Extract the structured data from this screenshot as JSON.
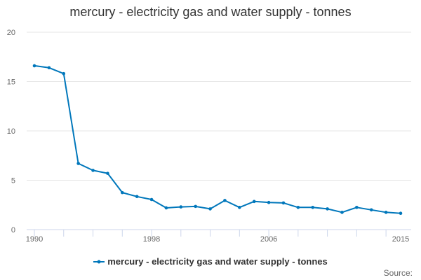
{
  "chart_data": {
    "type": "line",
    "title": "mercury - electricity gas and water supply - tonnes",
    "xlabel": "",
    "ylabel": "",
    "x": [
      1990,
      1991,
      1992,
      1993,
      1994,
      1995,
      1996,
      1997,
      1998,
      1999,
      2000,
      2001,
      2002,
      2003,
      2004,
      2005,
      2006,
      2007,
      2008,
      2009,
      2010,
      2011,
      2012,
      2013,
      2014,
      2015
    ],
    "series": [
      {
        "name": "mercury - electricity gas and water supply - tonnes",
        "color": "#0077bb",
        "values": [
          16.6,
          16.4,
          15.8,
          6.7,
          6.0,
          5.7,
          3.75,
          3.35,
          3.05,
          2.2,
          2.3,
          2.35,
          2.1,
          2.95,
          2.25,
          2.85,
          2.75,
          2.7,
          2.25,
          2.25,
          2.1,
          1.75,
          2.25,
          2.0,
          1.75,
          1.65
        ]
      }
    ],
    "xlim": [
      1990,
      2015
    ],
    "ylim": [
      0,
      20
    ],
    "y_ticks": [
      0,
      5,
      10,
      15,
      20
    ],
    "x_tick_labels": [
      "1990",
      "1998",
      "2006",
      "2015"
    ],
    "grid": "horizontal",
    "legend_position": "bottom-center"
  },
  "credits": "Source:"
}
